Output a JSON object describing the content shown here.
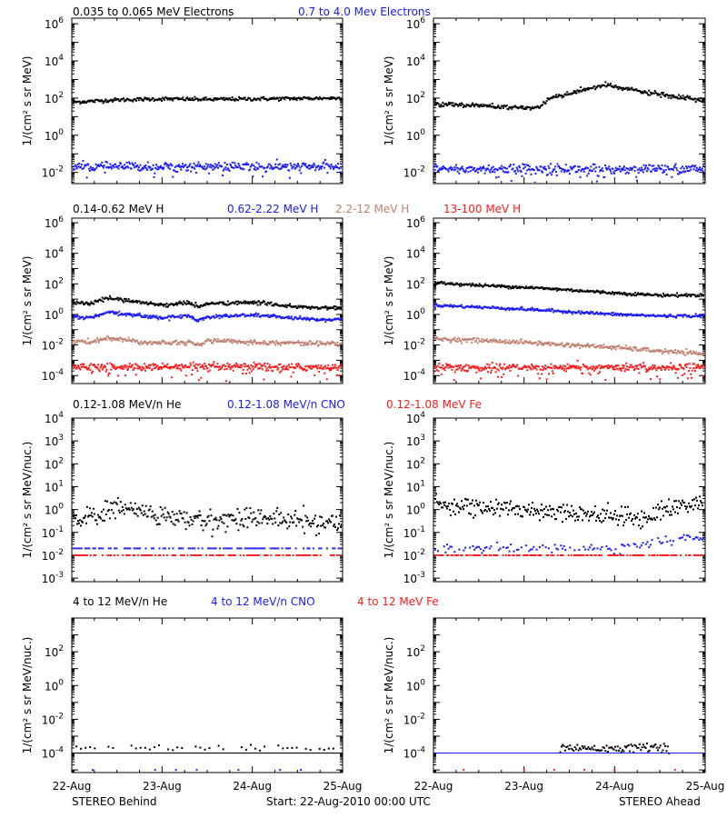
{
  "colors": {
    "black": "#000000",
    "blue": "#1a1aff",
    "brown": "#c08070",
    "red": "#ff1a1a"
  },
  "footer": {
    "left": "STEREO Behind",
    "center": "Start: 22-Aug-2010 00:00 UTC",
    "right": "STEREO Ahead"
  },
  "x_ticks": [
    "22-Aug",
    "23-Aug",
    "24-Aug",
    "25-Aug"
  ],
  "chart_data": [
    {
      "type": "scatter",
      "scale": "log",
      "row": 0,
      "ylim": [
        0.0025,
        2000000
      ],
      "ylabel": "1/(cm² s sr MeV)",
      "yticks": [
        {
          "v": 1000000,
          "b": "10",
          "e": "6"
        },
        {
          "v": 10000,
          "b": "10",
          "e": "4"
        },
        {
          "v": 100,
          "b": "10",
          "e": "2"
        },
        {
          "v": 1,
          "b": "10",
          "e": "0"
        },
        {
          "v": 0.01,
          "b": "10",
          "e": "-2"
        }
      ],
      "legend": [
        {
          "label": "0.035 to 0.065 MeV Electrons",
          "color": "black"
        },
        {
          "label": "0.7 to 4.0 Mev Electrons",
          "color": "blue"
        }
      ],
      "panels": [
        {
          "side": "behind",
          "series": [
            {
              "color": "black",
              "x": [
                0,
                0.5,
                1,
                1.5,
                2,
                2.5,
                3
              ],
              "y": [
                60,
                80,
                90,
                85,
                90,
                95,
                100
              ],
              "noise": 0.05,
              "density": 320
            },
            {
              "color": "blue",
              "x": [
                0,
                1,
                2,
                3
              ],
              "y": [
                0.02,
                0.02,
                0.02,
                0.02
              ],
              "noise": 0.12,
              "density": 360,
              "outliers": 0.04
            }
          ]
        },
        {
          "side": "ahead",
          "series": [
            {
              "color": "black",
              "x": [
                0,
                0.5,
                1.0,
                1.2,
                1.21,
                1.4,
                1.41,
                1.6,
                1.61,
                1.9,
                1.91,
                2.3,
                2.7,
                3
              ],
              "y": [
                50,
                40,
                28,
                35,
                60,
                150,
                110,
                250,
                250,
                500,
                500,
                220,
                110,
                70
              ],
              "noise": 0.06,
              "density": 320
            },
            {
              "color": "blue",
              "x": [
                0,
                1,
                2,
                3
              ],
              "y": [
                0.015,
                0.015,
                0.015,
                0.015
              ],
              "noise": 0.13,
              "density": 360,
              "outliers": 0.06
            }
          ]
        }
      ]
    },
    {
      "type": "scatter",
      "scale": "log",
      "row": 1,
      "ylim": [
        3e-05,
        2000000
      ],
      "ylabel": "1/(cm² s sr MeV)",
      "yticks": [
        {
          "v": 1000000,
          "b": "10",
          "e": "6"
        },
        {
          "v": 10000,
          "b": "10",
          "e": "4"
        },
        {
          "v": 100,
          "b": "10",
          "e": "2"
        },
        {
          "v": 1,
          "b": "10",
          "e": "0"
        },
        {
          "v": 0.01,
          "b": "10",
          "e": "-2"
        },
        {
          "v": 0.0001,
          "b": "10",
          "e": "-4"
        }
      ],
      "legend": [
        {
          "label": "0.14-0.62 MeV H",
          "color": "black"
        },
        {
          "label": "0.62-2.22 MeV H",
          "color": "blue"
        },
        {
          "label": "2.2-12 MeV H",
          "color": "brown"
        },
        {
          "label": "13-100 MeV H",
          "color": "red"
        }
      ],
      "panels": [
        {
          "side": "behind",
          "series": [
            {
              "color": "black",
              "x": [
                0,
                0.2,
                0.4,
                0.8,
                1.0,
                1.3,
                1.4,
                1.5,
                2.0,
                2.2,
                2.5,
                3
              ],
              "y": [
                6,
                5,
                12,
                6,
                4,
                6,
                3,
                5,
                6,
                5,
                3,
                2.5
              ],
              "noise": 0.06,
              "density": 320
            },
            {
              "color": "blue",
              "x": [
                0,
                0.2,
                0.4,
                0.8,
                1.0,
                1.3,
                1.4,
                1.5,
                2.0,
                2.2,
                2.5,
                3
              ],
              "y": [
                0.7,
                0.6,
                1.3,
                0.8,
                0.6,
                0.8,
                0.4,
                0.7,
                0.9,
                0.8,
                0.5,
                0.45
              ],
              "noise": 0.06,
              "density": 320
            },
            {
              "color": "brown",
              "x": [
                0,
                0.2,
                0.4,
                0.8,
                1.3,
                1.4,
                1.5,
                2.0,
                3
              ],
              "y": [
                0.018,
                0.015,
                0.03,
                0.015,
                0.015,
                0.009,
                0.02,
                0.015,
                0.012
              ],
              "noise": 0.07,
              "density": 320
            },
            {
              "color": "red",
              "x": [
                0,
                3
              ],
              "y": [
                0.00035,
                0.00035
              ],
              "noise": 0.12,
              "density": 380,
              "outliers": 0.12
            }
          ]
        },
        {
          "side": "ahead",
          "series": [
            {
              "color": "black",
              "x": [
                0,
                0.5,
                1,
                1.5,
                2,
                2.5,
                3
              ],
              "y": [
                120,
                80,
                60,
                40,
                25,
                18,
                18
              ],
              "noise": 0.05,
              "density": 320
            },
            {
              "color": "blue",
              "x": [
                0,
                0.5,
                1,
                1.5,
                2,
                2.5,
                3
              ],
              "y": [
                4,
                3,
                2.2,
                1.5,
                1.0,
                0.8,
                0.8
              ],
              "noise": 0.05,
              "density": 320
            },
            {
              "color": "brown",
              "x": [
                0,
                0.5,
                1,
                1.5,
                2,
                2.5,
                3
              ],
              "y": [
                0.025,
                0.02,
                0.015,
                0.01,
                0.007,
                0.004,
                0.0025
              ],
              "noise": 0.07,
              "density": 320
            },
            {
              "color": "red",
              "x": [
                0,
                3
              ],
              "y": [
                0.00035,
                0.00035
              ],
              "noise": 0.12,
              "density": 380,
              "outliers": 0.12
            }
          ]
        }
      ]
    },
    {
      "type": "scatter",
      "scale": "log",
      "row": 2,
      "ylim": [
        0.0007,
        10000
      ],
      "ylabel": "1/(cm² s sr MeV/nuc.)",
      "yticks": [
        {
          "v": 10000,
          "b": "10",
          "e": "4"
        },
        {
          "v": 1000,
          "b": "10",
          "e": "3"
        },
        {
          "v": 100,
          "b": "10",
          "e": "2"
        },
        {
          "v": 10,
          "b": "10",
          "e": "1"
        },
        {
          "v": 1,
          "b": "10",
          "e": "0"
        },
        {
          "v": 0.1,
          "b": "10",
          "e": "-1"
        },
        {
          "v": 0.01,
          "b": "10",
          "e": "-2"
        },
        {
          "v": 0.001,
          "b": "10",
          "e": "-3"
        }
      ],
      "legend": [
        {
          "label": "0.12-1.08 MeV/n He",
          "color": "black"
        },
        {
          "label": "0.12-1.08 MeV/n CNO",
          "color": "blue"
        },
        {
          "label": "0.12-1.08 MeV Fe",
          "color": "red"
        }
      ],
      "panels": [
        {
          "side": "behind",
          "series": [
            {
              "color": "black",
              "x": [
                0,
                0.3,
                0.5,
                1.0,
                1.5,
                2.0,
                2.5,
                3
              ],
              "y": [
                0.4,
                0.5,
                1.4,
                0.5,
                0.3,
                0.5,
                0.3,
                0.25
              ],
              "noise": 0.22,
              "density": 300
            },
            {
              "color": "blue",
              "x": [
                0,
                3
              ],
              "y": [
                0.02,
                0.02
              ],
              "noise": 0,
              "density": 140,
              "sparse": true
            },
            {
              "color": "red",
              "x": [
                0,
                3
              ],
              "y": [
                0.01,
                0.01
              ],
              "noise": 0,
              "density": 160,
              "sparse": true
            }
          ]
        },
        {
          "side": "ahead",
          "series": [
            {
              "color": "black",
              "x": [
                0,
                0.5,
                1.0,
                1.5,
                2.0,
                2.3,
                2.6,
                3
              ],
              "y": [
                2,
                1.2,
                1.0,
                0.8,
                0.5,
                0.4,
                1.2,
                2.0
              ],
              "noise": 0.2,
              "density": 300
            },
            {
              "color": "blue",
              "x": [
                0,
                2.0,
                2.5,
                3
              ],
              "y": [
                0.02,
                0.02,
                0.04,
                0.06
              ],
              "noise": 0.1,
              "density": 180,
              "sparse": true
            },
            {
              "color": "red",
              "x": [
                0,
                3
              ],
              "y": [
                0.01,
                0.01
              ],
              "noise": 0,
              "density": 200,
              "sparse": true
            }
          ]
        }
      ]
    },
    {
      "type": "scatter",
      "scale": "log",
      "row": 3,
      "ylim": [
        7e-06,
        10000
      ],
      "ylabel": "1/(cm² s sr MeV/nuc.)",
      "yticks": [
        {
          "v": 100,
          "b": "10",
          "e": "2"
        },
        {
          "v": 1,
          "b": "10",
          "e": "0"
        },
        {
          "v": 0.01,
          "b": "10",
          "e": "-2"
        },
        {
          "v": 0.0001,
          "b": "10",
          "e": "-4"
        }
      ],
      "legend": [
        {
          "label": "4 to 12 MeV/n He",
          "color": "black"
        },
        {
          "label": "4 to 12 MeV/n CNO",
          "color": "blue"
        },
        {
          "label": "4 to 12 MeV Fe",
          "color": "red"
        }
      ],
      "panels": [
        {
          "side": "behind",
          "series": [
            {
              "color": "black",
              "x": [
                0,
                3
              ],
              "y": [
                0.0001,
                0.0001
              ],
              "noise": 0,
              "density": 260,
              "floor": true
            },
            {
              "color": "black",
              "x": [
                0,
                3
              ],
              "y": [
                0.0002,
                0.0002
              ],
              "noise": 0.08,
              "density": 60,
              "sparse": true
            },
            {
              "color": "blue",
              "x": [
                0,
                3
              ],
              "y": [
                1e-05,
                1e-05
              ],
              "noise": 0,
              "density": 14,
              "sparse": true
            }
          ]
        },
        {
          "side": "ahead",
          "series": [
            {
              "color": "blue",
              "x": [
                0,
                3
              ],
              "y": [
                0.0001,
                0.0001
              ],
              "noise": 0,
              "density": 200,
              "floor": true
            },
            {
              "color": "black",
              "x": [
                1.4,
                2.6
              ],
              "y": [
                0.0002,
                0.0002
              ],
              "noise": 0.12,
              "density": 90
            },
            {
              "color": "red",
              "x": [
                0,
                3
              ],
              "y": [
                1e-05,
                1e-05
              ],
              "noise": 0,
              "density": 10,
              "sparse": true
            }
          ]
        }
      ]
    }
  ]
}
